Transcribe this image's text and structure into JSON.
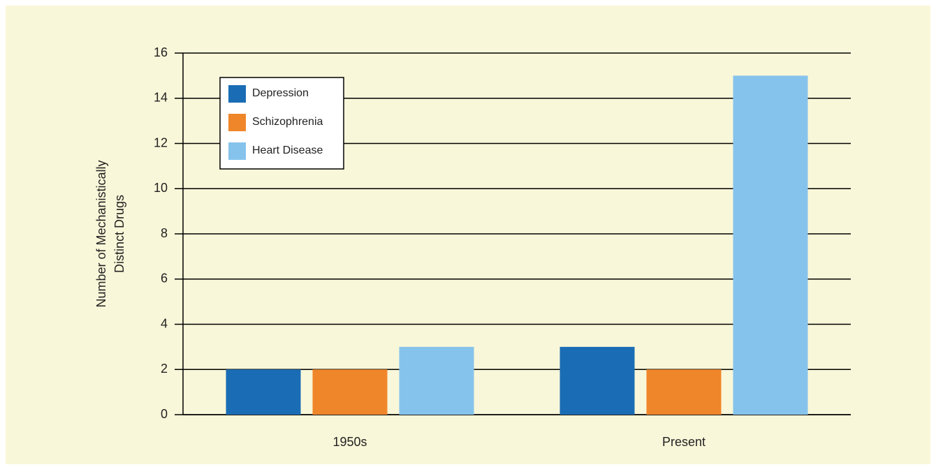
{
  "chart_data": {
    "type": "bar",
    "ylabel": [
      "Number of Mechanistically",
      "Distinct Drugs"
    ],
    "categories": [
      "1950s",
      "Present"
    ],
    "series": [
      {
        "name": "Depression",
        "color": "#1a6db5",
        "values": [
          2,
          3
        ]
      },
      {
        "name": "Schizophrenia",
        "color": "#f0862a",
        "values": [
          2,
          2
        ]
      },
      {
        "name": "Heart Disease",
        "color": "#86c3ec",
        "values": [
          3,
          15
        ]
      }
    ],
    "ylim": [
      0,
      16
    ],
    "yticks": [
      0,
      2,
      4,
      6,
      8,
      10,
      12,
      14,
      16
    ],
    "grid": true,
    "legend": "top-left"
  }
}
